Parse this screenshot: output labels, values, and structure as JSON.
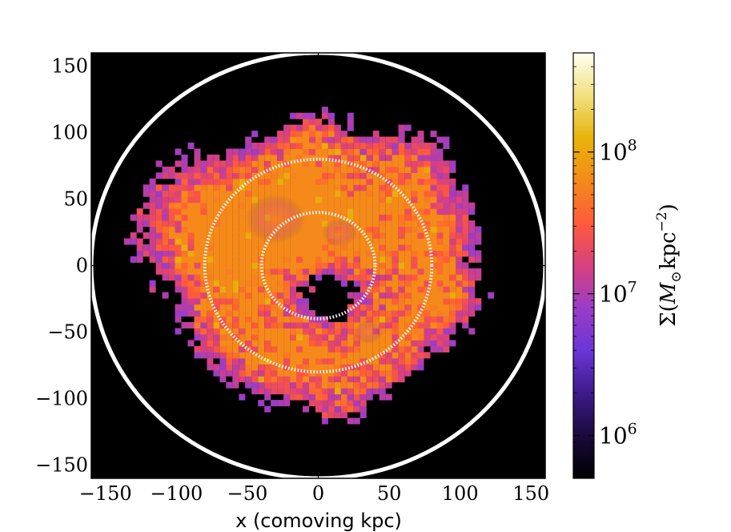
{
  "chart_data": {
    "type": "heatmap",
    "title": "",
    "xlabel": "x (comoving kpc)",
    "ylabel": "",
    "xlim": [
      -160,
      160
    ],
    "ylim": [
      -160,
      160
    ],
    "x_ticks": [
      -150,
      -100,
      -50,
      0,
      50,
      100,
      150
    ],
    "x_tick_labels": [
      "−150",
      "−100",
      "−50",
      "0",
      "50",
      "100",
      "150"
    ],
    "y_ticks": [
      150,
      100,
      50,
      0,
      -50,
      -100,
      -150
    ],
    "y_tick_labels": [
      "150",
      "100",
      "50",
      "0",
      "−50",
      "−100",
      "−150"
    ],
    "colorbar": {
      "label_prefix": "Σ(",
      "label_symbol": "M",
      "label_subscript": "⊙",
      "label_unit": "kpc",
      "label_exponent": "−2",
      "label_suffix": ")",
      "scale": "log",
      "range": [
        500000,
        500000000
      ],
      "ticks": [
        {
          "value": 1000000,
          "base": "10",
          "exp": "6"
        },
        {
          "value": 10000000,
          "base": "10",
          "exp": "7"
        },
        {
          "value": 100000000,
          "base": "10",
          "exp": "8"
        }
      ],
      "colormap": [
        "#000000",
        "#1a0a3c",
        "#3d1a8a",
        "#6b35d6",
        "#9a3dc8",
        "#d8407e",
        "#ff5a3a",
        "#f58a1a",
        "#e8b40a",
        "#f2e080",
        "#fffff0"
      ]
    },
    "circles": [
      {
        "radius": 160,
        "style": "solid"
      },
      {
        "radius": 80,
        "style": "dotted"
      },
      {
        "radius": 40,
        "style": "dotted"
      }
    ],
    "background_color": "#000000"
  }
}
